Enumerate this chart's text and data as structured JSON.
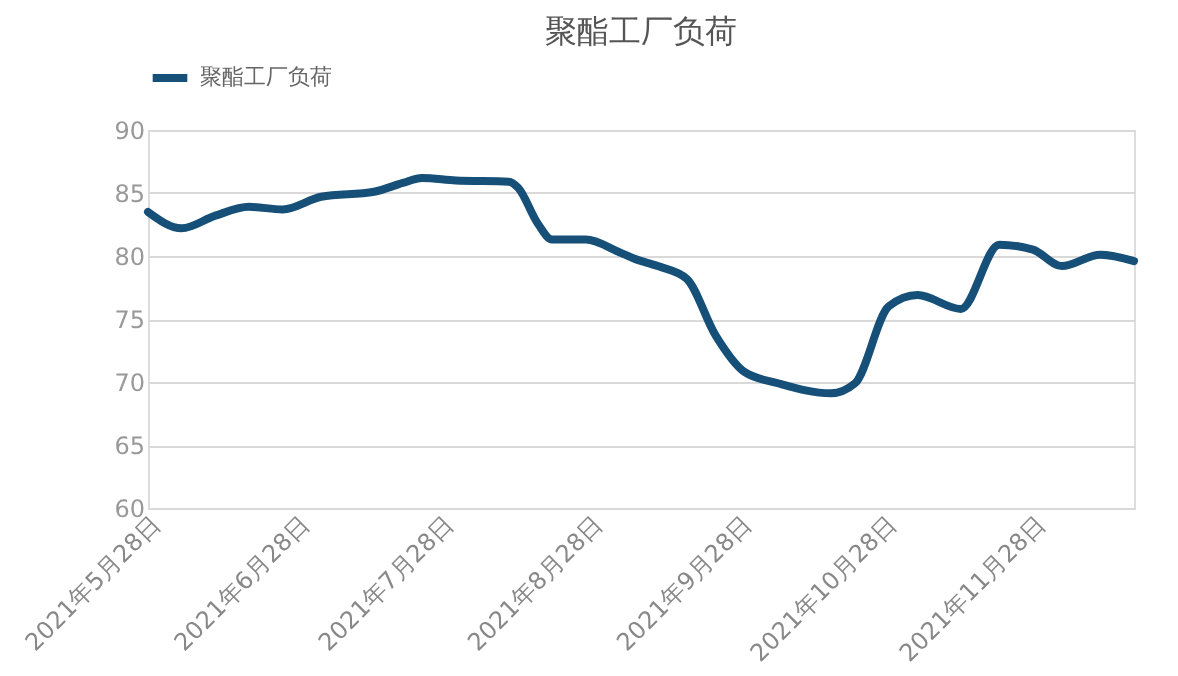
{
  "chart_data": {
    "type": "line",
    "title": "聚酯工厂负荷",
    "x": [
      "2021-05-28",
      "2021-06-04",
      "2021-06-11",
      "2021-06-18",
      "2021-06-25",
      "2021-07-03",
      "2021-07-14",
      "2021-07-20",
      "2021-07-24",
      "2021-07-31",
      "2021-08-11",
      "2021-08-13",
      "2021-08-17",
      "2021-08-20",
      "2021-08-27",
      "2021-09-03",
      "2021-09-06",
      "2021-09-11",
      "2021-09-17",
      "2021-09-23",
      "2021-09-29",
      "2021-10-06",
      "2021-10-17",
      "2021-10-22",
      "2021-10-29",
      "2021-11-04",
      "2021-11-13",
      "2021-11-21",
      "2021-11-28",
      "2021-12-04",
      "2021-12-12",
      "2021-12-19"
    ],
    "series": [
      {
        "name": "聚酯工厂负荷",
        "color": "#164f78",
        "values": [
          83.5,
          82.2,
          83.2,
          83.9,
          83.7,
          84.7,
          85.1,
          85.8,
          86.2,
          86.0,
          85.9,
          85.4,
          82.6,
          81.3,
          81.3,
          80.3,
          79.8,
          79.2,
          78.2,
          73.7,
          70.8,
          69.9,
          69.1,
          69.9,
          76.0,
          76.9,
          75.8,
          80.9,
          80.5,
          79.2,
          80.1,
          79.6
        ]
      }
    ],
    "xlim": [
      "2021-05-28",
      "2021-12-19"
    ],
    "xticks": [
      {
        "value": "2021-05-28",
        "label": "2021年5月28日"
      },
      {
        "value": "2021-06-28",
        "label": "2021年6月28日"
      },
      {
        "value": "2021-07-28",
        "label": "2021年7月28日"
      },
      {
        "value": "2021-08-28",
        "label": "2021年8月28日"
      },
      {
        "value": "2021-09-28",
        "label": "2021年9月28日"
      },
      {
        "value": "2021-10-28",
        "label": "2021年10月28日"
      },
      {
        "value": "2021-11-28",
        "label": "2021年11月28日"
      }
    ],
    "ylim": [
      60,
      90
    ],
    "yticks": [
      60,
      65,
      70,
      75,
      80,
      85,
      90
    ],
    "grid": "y",
    "legend": "top",
    "marker": "none",
    "line_style": "solid"
  }
}
